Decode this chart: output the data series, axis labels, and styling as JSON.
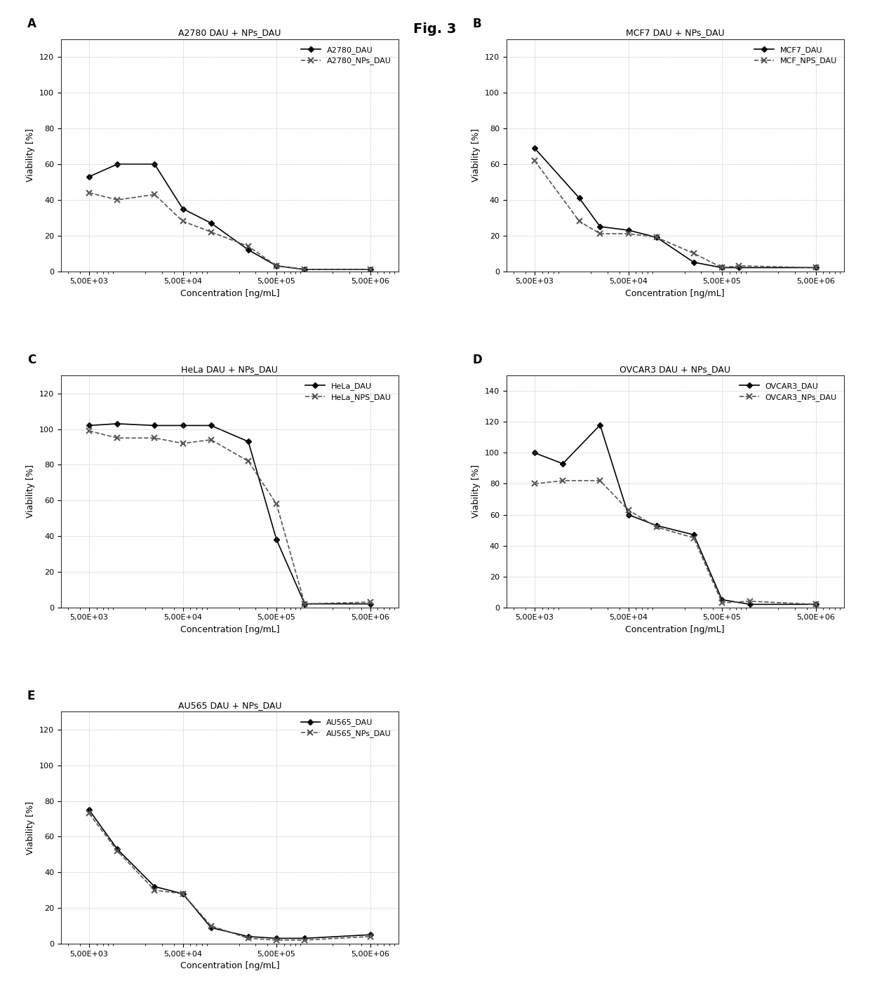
{
  "title": "Fig. 3",
  "subplots": [
    {
      "label": "A",
      "title": "A2780 DAU + NPs_DAU",
      "series": [
        {
          "name": "A2780_DAU",
          "x": [
            5000,
            10000,
            25000,
            50000,
            100000,
            250000,
            500000,
            1000000,
            5000000
          ],
          "y": [
            53,
            60,
            60,
            35,
            27,
            12,
            3,
            1,
            1
          ],
          "style": "solid",
          "marker": "D",
          "color": "#000000"
        },
        {
          "name": "A2780_NPs_DAU",
          "x": [
            5000,
            10000,
            25000,
            50000,
            100000,
            250000,
            500000,
            1000000,
            5000000
          ],
          "y": [
            44,
            40,
            43,
            28,
            22,
            14,
            3,
            1,
            1
          ],
          "style": "dashed",
          "marker": "x",
          "color": "#555555"
        }
      ],
      "ylim": [
        0,
        130
      ],
      "yticks": [
        0,
        20,
        40,
        60,
        80,
        100,
        120
      ],
      "ylabel": "Viability [%]",
      "xlabel": "Concentration [ng/mL]"
    },
    {
      "label": "B",
      "title": "MCF7 DAU + NPs_DAU",
      "series": [
        {
          "name": "MCF7_DAU",
          "x": [
            5000,
            15000,
            25000,
            50000,
            100000,
            250000,
            500000,
            750000,
            5000000
          ],
          "y": [
            69,
            41,
            25,
            23,
            19,
            5,
            2,
            2,
            2
          ],
          "style": "solid",
          "marker": "D",
          "color": "#000000"
        },
        {
          "name": "MCF_NPS_DAU",
          "x": [
            5000,
            15000,
            25000,
            50000,
            100000,
            250000,
            500000,
            750000,
            5000000
          ],
          "y": [
            62,
            28,
            21,
            21,
            19,
            10,
            2,
            3,
            2
          ],
          "style": "dashed",
          "marker": "x",
          "color": "#555555"
        }
      ],
      "ylim": [
        0,
        130
      ],
      "yticks": [
        0,
        20,
        40,
        60,
        80,
        100,
        120
      ],
      "ylabel": "Viability [%]",
      "xlabel": "Concentration [ng/mL]"
    },
    {
      "label": "C",
      "title": "HeLa DAU + NPs_DAU",
      "series": [
        {
          "name": "HeLa_DAU",
          "x": [
            5000,
            10000,
            25000,
            50000,
            100000,
            250000,
            500000,
            1000000,
            5000000
          ],
          "y": [
            102,
            103,
            102,
            102,
            102,
            93,
            38,
            2,
            2
          ],
          "style": "solid",
          "marker": "D",
          "color": "#000000"
        },
        {
          "name": "HeLa_NPS_DAU",
          "x": [
            5000,
            10000,
            25000,
            50000,
            100000,
            250000,
            500000,
            1000000,
            5000000
          ],
          "y": [
            99,
            95,
            95,
            92,
            94,
            82,
            58,
            2,
            3
          ],
          "style": "dashed",
          "marker": "x",
          "color": "#555555"
        }
      ],
      "ylim": [
        0,
        130
      ],
      "yticks": [
        0,
        20,
        40,
        60,
        80,
        100,
        120
      ],
      "ylabel": "Viability [%]",
      "xlabel": "Concentration [ng/mL]"
    },
    {
      "label": "D",
      "title": "OVCAR3 DAU + NPs_DAU",
      "series": [
        {
          "name": "OVCAR3_DAU",
          "x": [
            5000,
            10000,
            25000,
            50000,
            100000,
            250000,
            500000,
            1000000,
            5000000
          ],
          "y": [
            100,
            93,
            118,
            60,
            53,
            47,
            5,
            2,
            2
          ],
          "style": "solid",
          "marker": "D",
          "color": "#000000"
        },
        {
          "name": "OVCAR3_NPs_DAU",
          "x": [
            5000,
            10000,
            25000,
            50000,
            100000,
            250000,
            500000,
            1000000,
            5000000
          ],
          "y": [
            80,
            82,
            82,
            63,
            52,
            45,
            3,
            4,
            2
          ],
          "style": "dashed",
          "marker": "x",
          "color": "#555555"
        }
      ],
      "ylim": [
        0,
        150
      ],
      "yticks": [
        0,
        20,
        40,
        60,
        80,
        100,
        120,
        140
      ],
      "ylabel": "Viability [%]",
      "xlabel": "Concentration [ng/mL]"
    },
    {
      "label": "E",
      "title": "AU565 DAU + NPs_DAU",
      "series": [
        {
          "name": "AU565_DAU",
          "x": [
            5000,
            10000,
            25000,
            50000,
            100000,
            250000,
            500000,
            1000000,
            5000000
          ],
          "y": [
            75,
            53,
            32,
            28,
            9,
            4,
            3,
            3,
            5
          ],
          "style": "solid",
          "marker": "D",
          "color": "#000000"
        },
        {
          "name": "AU565_NPs_DAU",
          "x": [
            5000,
            10000,
            25000,
            50000,
            100000,
            250000,
            500000,
            1000000,
            5000000
          ],
          "y": [
            73,
            52,
            30,
            28,
            10,
            3,
            2,
            2,
            4
          ],
          "style": "dashed",
          "marker": "x",
          "color": "#555555"
        }
      ],
      "ylim": [
        0,
        130
      ],
      "yticks": [
        0,
        20,
        40,
        60,
        80,
        100,
        120
      ],
      "ylabel": "Viability [%]",
      "xlabel": "Concentration [ng/mL]"
    }
  ],
  "xtick_positions": [
    5000,
    50000,
    500000,
    5000000
  ],
  "xtick_labels": [
    "5,00E+03",
    "5,00E+04",
    "5,00E+05",
    "5,00E+06"
  ],
  "background_color": "#ffffff",
  "grid_color": "#aaaaaa",
  "fig_title_fontsize": 14,
  "axis_label_fontsize": 9,
  "tick_label_fontsize": 8,
  "legend_fontsize": 8,
  "subplot_title_fontsize": 9,
  "panel_label_fontsize": 12
}
